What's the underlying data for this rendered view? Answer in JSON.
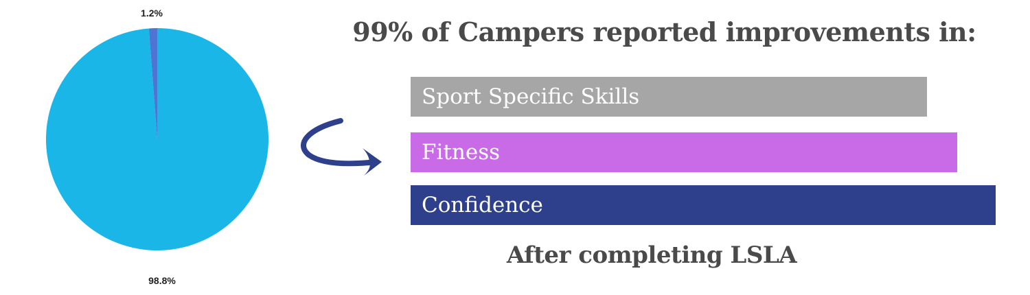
{
  "chart_data": {
    "type": "pie",
    "slices": [
      {
        "value": 98.8,
        "label": "98.8%",
        "color": "#1bb6e8"
      },
      {
        "value": 1.2,
        "label": "1.2%",
        "color": "#4e74d4"
      }
    ]
  },
  "infographic": {
    "headline": "99% of Campers reported improvements in:",
    "bars": [
      {
        "label": "Sport Specific Skills",
        "color": "#a6a6a6"
      },
      {
        "label": "Fitness",
        "color": "#c96ae6"
      },
      {
        "label": "Confidence",
        "color": "#2e3f8c"
      }
    ],
    "footer": "After completing LSLA"
  },
  "colors": {
    "arrow": "#2e3f8c",
    "heading_text": "#4a4a4a"
  },
  "icons": {
    "arrow": "curved-arrow-icon"
  }
}
